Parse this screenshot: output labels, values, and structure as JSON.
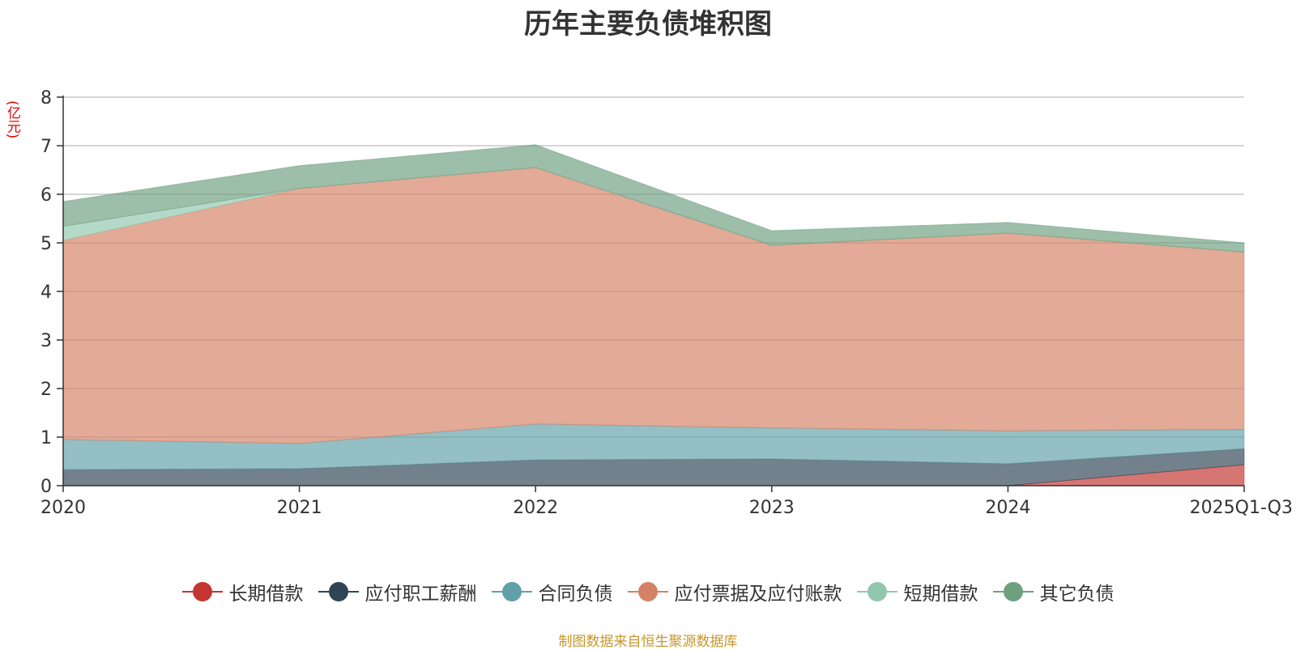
{
  "chart_data": {
    "type": "area",
    "stacked": true,
    "title": "历年主要负债堆积图",
    "unit_label": "(亿元)",
    "categories": [
      "2020",
      "2021",
      "2022",
      "2023",
      "2024",
      "2025Q1-Q3"
    ],
    "ylim": [
      0,
      8
    ],
    "yticks": [
      "0",
      "1",
      "2",
      "3",
      "4",
      "5",
      "6",
      "7",
      "8"
    ],
    "grid": true,
    "legend_position": "bottom",
    "series": [
      {
        "name": "长期借款",
        "color": "#c23531",
        "values": [
          0,
          0,
          0,
          0,
          0,
          0.43
        ]
      },
      {
        "name": "应付职工薪酬",
        "color": "#2f4554",
        "values": [
          0.33,
          0.35,
          0.53,
          0.55,
          0.45,
          0.33
        ]
      },
      {
        "name": "合同负债",
        "color": "#61a0a8",
        "values": [
          0.62,
          0.52,
          0.74,
          0.64,
          0.68,
          0.4
        ]
      },
      {
        "name": "应付票据及应付账款",
        "color": "#d48265",
        "values": [
          4.1,
          5.25,
          5.28,
          3.76,
          4.07,
          3.65
        ]
      },
      {
        "name": "短期借款",
        "color": "#91c7ae",
        "values": [
          0.29,
          0,
          0,
          0,
          0,
          0
        ]
      },
      {
        "name": "其它负债",
        "color": "#6e9f80",
        "values": [
          0.51,
          0.47,
          0.47,
          0.3,
          0.22,
          0.19
        ]
      }
    ]
  },
  "source_note": "制图数据来自恒生聚源数据库"
}
